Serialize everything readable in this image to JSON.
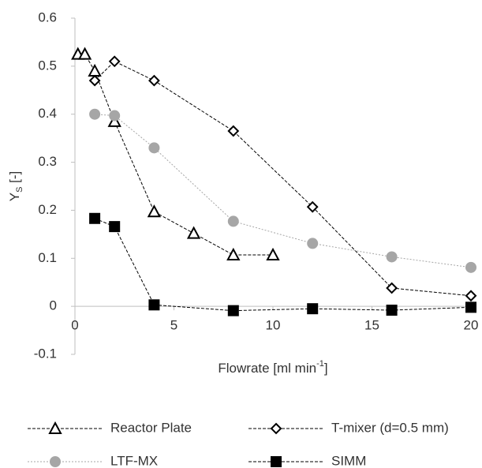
{
  "chart_data": {
    "type": "line",
    "x_label": {
      "main": "Flowrate [ml min",
      "sup": "-1",
      "end": "]"
    },
    "y_label": {
      "main": "Y",
      "sub": "S",
      "end": " [-]"
    },
    "xlim": [
      0,
      20
    ],
    "xticks": [
      0,
      5,
      10,
      15,
      20
    ],
    "ylim": [
      -0.1,
      0.6
    ],
    "yticks": [
      -0.1,
      0,
      0.1,
      0.2,
      0.3,
      0.4,
      0.5,
      0.6
    ],
    "grid": false,
    "series": [
      {
        "name": "Reactor Plate",
        "color": "#000000",
        "marker": "triangle",
        "fill": "#ffffff",
        "dash": "4 2",
        "x": [
          0.15,
          0.5,
          1,
          2,
          4,
          6,
          8,
          10
        ],
        "values": [
          0.525,
          0.525,
          0.49,
          0.385,
          0.197,
          0.152,
          0.107,
          0.107
        ]
      },
      {
        "name": "T-mixer (d=0.5 mm)",
        "color": "#000000",
        "marker": "diamond",
        "fill": "#ffffff",
        "dash": "4 2",
        "x": [
          1,
          2,
          4,
          8,
          12,
          16,
          20
        ],
        "values": [
          0.47,
          0.51,
          0.47,
          0.365,
          0.207,
          0.038,
          0.022
        ]
      },
      {
        "name": "LTF-MX",
        "color": "#a6a6a6",
        "marker": "circle",
        "fill": "#a6a6a6",
        "dash": "2 2",
        "x": [
          1,
          2,
          4,
          8,
          12,
          16,
          20
        ],
        "values": [
          0.4,
          0.397,
          0.33,
          0.177,
          0.131,
          0.103,
          0.081
        ]
      },
      {
        "name": "SIMM",
        "color": "#000000",
        "marker": "square",
        "fill": "#000000",
        "dash": "4 2",
        "x": [
          1,
          2,
          4,
          8,
          12,
          16,
          20
        ],
        "values": [
          0.183,
          0.166,
          0.003,
          -0.009,
          -0.005,
          -0.008,
          -0.002
        ]
      }
    ]
  }
}
